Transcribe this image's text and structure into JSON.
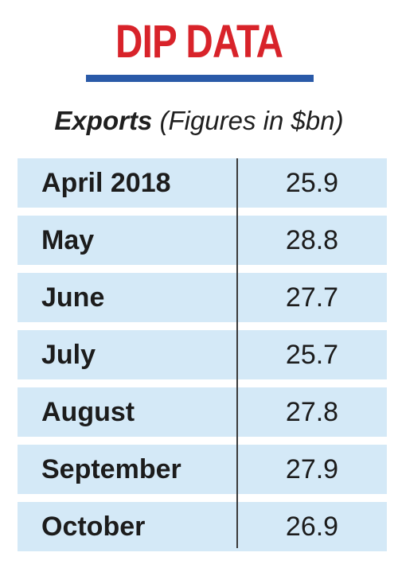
{
  "title": "DIP DATA",
  "subtitle": {
    "bold": "Exports",
    "rest": "(Figures in $bn)"
  },
  "colors": {
    "title": "#d8232a",
    "rule": "#2a5aa8",
    "row_fill": "#d4e9f7",
    "divider": "#3a3a3a"
  },
  "chart_data": {
    "type": "table",
    "title": "Exports",
    "unit": "(Figures in $bn)",
    "categories": [
      "April 2018",
      "May",
      "June",
      "July",
      "August",
      "September",
      "October"
    ],
    "values": [
      25.9,
      28.8,
      27.7,
      25.7,
      27.8,
      27.9,
      26.9
    ],
    "rows": [
      {
        "label": "April 2018",
        "value": "25.9"
      },
      {
        "label": "May",
        "value": "28.8"
      },
      {
        "label": "June",
        "value": "27.7"
      },
      {
        "label": "July",
        "value": "25.7"
      },
      {
        "label": "August",
        "value": "27.8"
      },
      {
        "label": "September",
        "value": "27.9"
      },
      {
        "label": "October",
        "value": "26.9"
      }
    ]
  }
}
